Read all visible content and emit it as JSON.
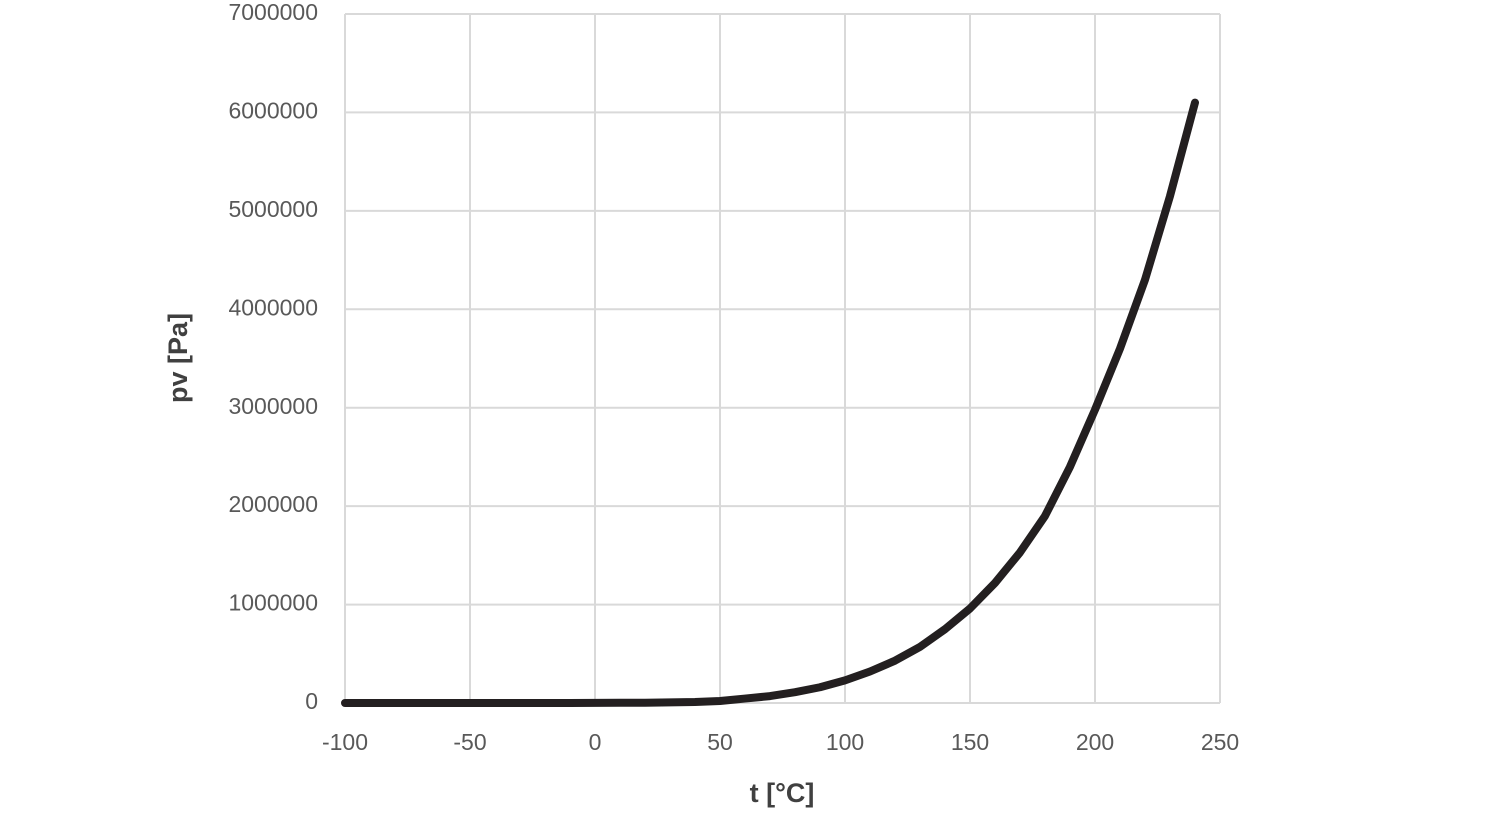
{
  "chart_data": {
    "type": "line",
    "x_label": "t [°C]",
    "y_label": "pv [Pa]",
    "x": [
      -100,
      -90,
      -80,
      -70,
      -60,
      -50,
      -40,
      -30,
      -20,
      -10,
      0,
      10,
      20,
      30,
      40,
      50,
      60,
      70,
      80,
      90,
      100,
      110,
      120,
      130,
      140,
      150,
      160,
      170,
      180,
      190,
      200,
      210,
      220,
      230,
      240
    ],
    "series": [
      {
        "color": "#231f20",
        "values": [
          0,
          0,
          0,
          0,
          0,
          0,
          0,
          0,
          0,
          0,
          1000,
          2000,
          3000,
          6000,
          10000,
          20000,
          45000,
          70000,
          110000,
          160000,
          230000,
          320000,
          430000,
          570000,
          750000,
          960000,
          1220000,
          1530000,
          1900000,
          2400000,
          2980000,
          3600000,
          4300000,
          5150000,
          6100000
        ]
      }
    ],
    "xlim": [
      -100,
      250
    ],
    "xticks": [
      -100,
      -50,
      0,
      50,
      100,
      150,
      200,
      250
    ],
    "ylim": [
      0,
      7000000
    ],
    "yticks": [
      0,
      1000000,
      2000000,
      3000000,
      4000000,
      5000000,
      6000000,
      7000000
    ],
    "grid": true
  }
}
